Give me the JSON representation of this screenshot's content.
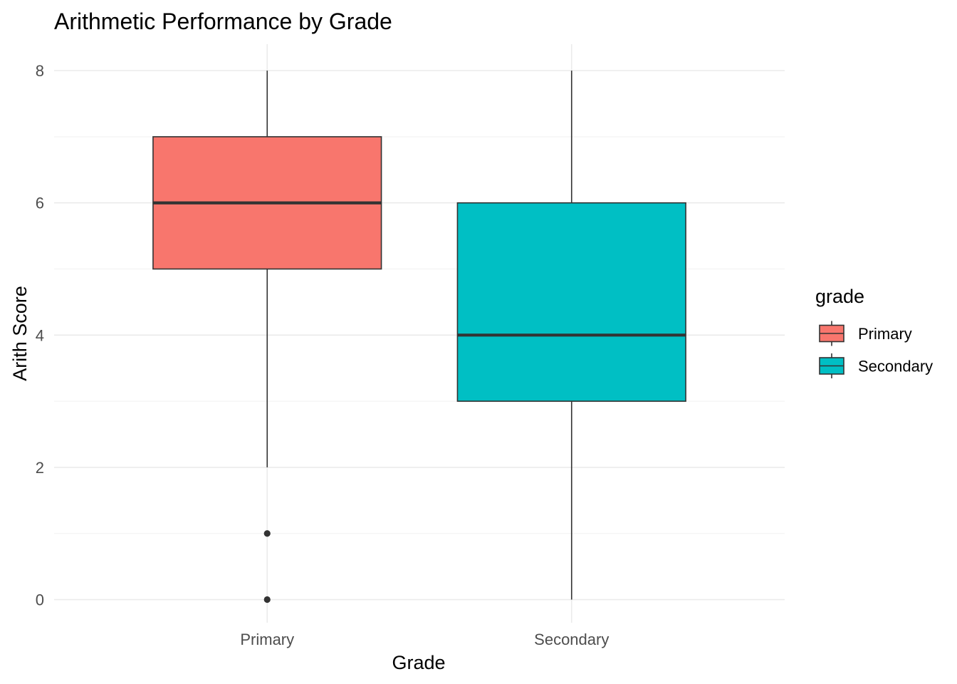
{
  "chart_data": {
    "type": "boxplot",
    "title": "Arithmetic Performance by Grade",
    "xlabel": "Grade",
    "ylabel": "Arith Score",
    "ylim": [
      -0.35,
      8.4
    ],
    "yticks": [
      0,
      2,
      4,
      6,
      8
    ],
    "grid": "on",
    "legend": {
      "title": "grade",
      "placement": "right",
      "entries": [
        {
          "label": "Primary",
          "color": "#F8766D"
        },
        {
          "label": "Secondary",
          "color": "#00BFC4"
        }
      ]
    },
    "categories": [
      "Primary",
      "Secondary"
    ],
    "boxes": [
      {
        "category": "Primary",
        "min": 2,
        "q1": 5,
        "median": 6,
        "q3": 7,
        "max": 8,
        "outliers": [
          1,
          0
        ],
        "color": "#F8766D"
      },
      {
        "category": "Secondary",
        "min": 0,
        "q1": 3,
        "median": 4,
        "q3": 6,
        "max": 8,
        "outliers": [],
        "color": "#00BFC4"
      }
    ]
  }
}
